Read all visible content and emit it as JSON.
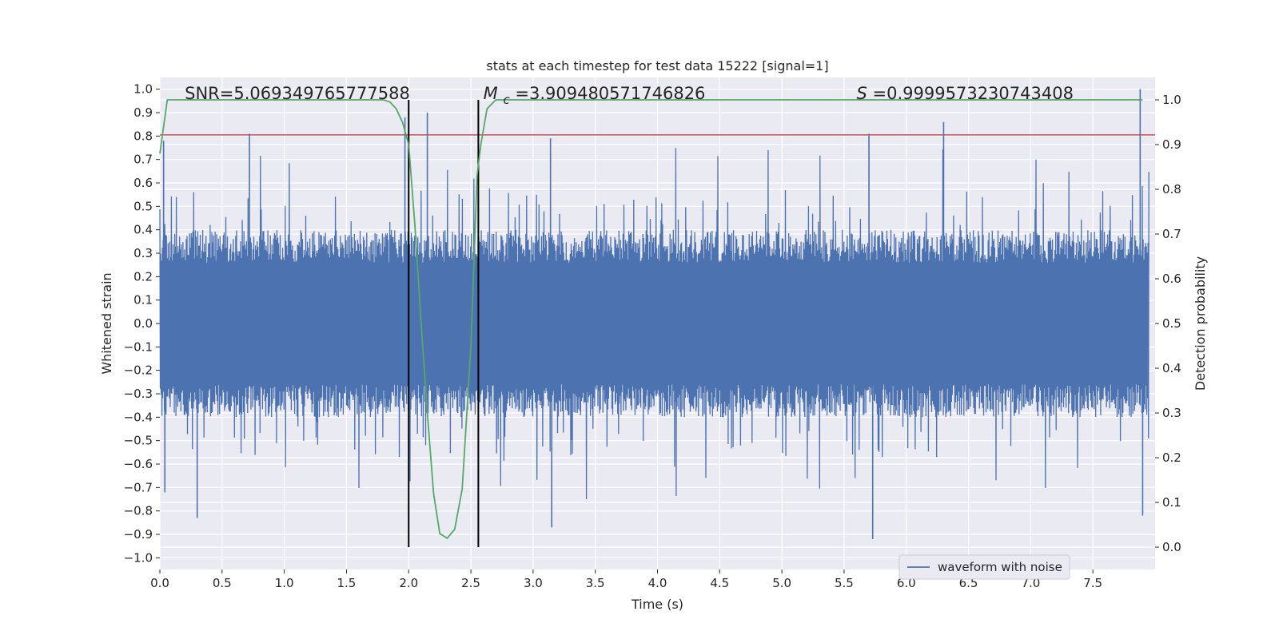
{
  "chart_data": {
    "type": "line",
    "title": "stats at each timestep for test data 15222 [signal=1]",
    "xlabel": "Time (s)",
    "ylabel_left": "Whitened strain",
    "ylabel_right": "Detection probability",
    "xlim": [
      0.0,
      8.0
    ],
    "ylim_left": [
      -1.05,
      1.05
    ],
    "ylim_right": [
      -0.05,
      1.05
    ],
    "x_ticks": [
      "0.0",
      "0.5",
      "1.0",
      "1.5",
      "2.0",
      "2.5",
      "3.0",
      "3.5",
      "4.0",
      "4.5",
      "5.0",
      "5.5",
      "6.0",
      "6.5",
      "7.0",
      "7.5"
    ],
    "y_left_ticks": [
      "1.0",
      "0.9",
      "0.8",
      "0.7",
      "0.6",
      "0.5",
      "0.4",
      "0.3",
      "0.2",
      "0.1",
      "0.0",
      "−0.1",
      "−0.2",
      "−0.3",
      "−0.4",
      "−0.5",
      "−0.6",
      "−0.7",
      "−0.8",
      "−0.9",
      "−1.0"
    ],
    "y_right_ticks": [
      "1.0",
      "0.9",
      "0.8",
      "0.7",
      "0.6",
      "0.5",
      "0.4",
      "0.3",
      "0.2",
      "0.1",
      "0.0"
    ],
    "grid": true,
    "legend_position": "bottom-right",
    "annotations": {
      "snr": {
        "label": "SNR=5.069349765777588",
        "x": 0.2
      },
      "mc_symbol": "M",
      "mc_sub": "c",
      "mc_value": "=3.909480571746826",
      "mc_x": 2.6,
      "s_symbol": "S",
      "s_value": "=0.9999573230743408",
      "s_x": 5.6
    },
    "series": [
      {
        "name": "waveform with noise",
        "axis": "left",
        "color": "#4c72b0",
        "style": "dense-noise",
        "amplitude_peaks": [
          {
            "x": 0.03,
            "y": 0.78
          },
          {
            "x": 0.04,
            "y": -0.72
          },
          {
            "x": 0.3,
            "y": -0.83
          },
          {
            "x": 0.72,
            "y": 0.81
          },
          {
            "x": 1.97,
            "y": 0.88
          },
          {
            "x": 2.15,
            "y": 0.9
          },
          {
            "x": 3.15,
            "y": -0.87
          },
          {
            "x": 3.14,
            "y": 0.79
          },
          {
            "x": 5.7,
            "y": 0.81
          },
          {
            "x": 5.73,
            "y": -0.92
          },
          {
            "x": 6.3,
            "y": 0.86
          },
          {
            "x": 7.88,
            "y": 1.0
          },
          {
            "x": 7.9,
            "y": -0.82
          }
        ]
      },
      {
        "name": "",
        "axis": "right",
        "color": "#55a868",
        "x": [
          0.0,
          0.06,
          0.2,
          1.7,
          1.8,
          1.85,
          1.9,
          1.95,
          2.0,
          2.05,
          2.1,
          2.15,
          2.2,
          2.25,
          2.31,
          2.37,
          2.43,
          2.5,
          2.55,
          2.58,
          2.63,
          2.7,
          3.0,
          5.0,
          7.9
        ],
        "y": [
          0.88,
          1.0,
          1.0,
          1.0,
          1.0,
          0.995,
          0.98,
          0.95,
          0.9,
          0.72,
          0.5,
          0.3,
          0.12,
          0.03,
          0.02,
          0.04,
          0.13,
          0.45,
          0.83,
          0.9,
          0.98,
          1.0,
          1.0,
          1.0,
          1.0
        ]
      },
      {
        "name": "",
        "axis": "left",
        "color": "#c44e52",
        "type": "hline",
        "y": 0.805
      }
    ],
    "vlines": [
      {
        "x": 2.0,
        "color": "#000000",
        "ymin_right": 0.0,
        "ymax_right": 1.0
      },
      {
        "x": 2.56,
        "color": "#000000",
        "ymin_right": 0.0,
        "ymax_right": 1.0
      }
    ]
  }
}
